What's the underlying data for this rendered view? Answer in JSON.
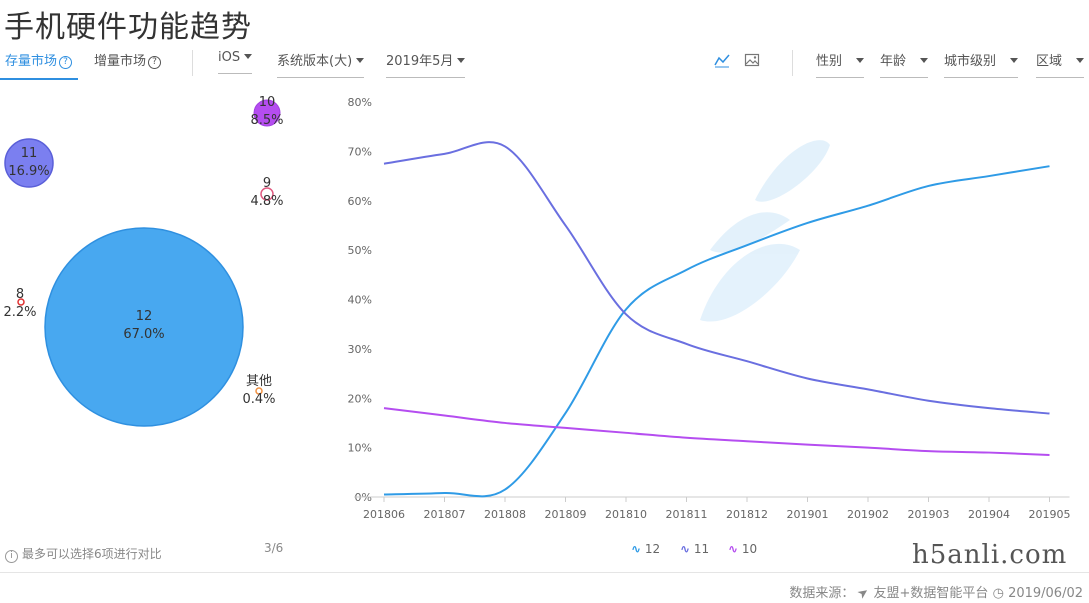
{
  "page": {
    "title": "手机硬件功能趋势"
  },
  "toolbar": {
    "tab_stock": "存量市场",
    "tab_incremental": "增量市场",
    "os": "iOS",
    "version": "系统版本(大)",
    "month": "2019年5月",
    "gender": "性别",
    "age": "年龄",
    "city_level": "城市级别",
    "region": "区域",
    "help_glyph": "?"
  },
  "icons": {
    "line_view": "line-chart-icon",
    "image_view": "image-icon",
    "info": "info-icon",
    "clock": "clock-icon",
    "logo": "plane-logo-icon"
  },
  "bubbles": [
    {
      "name": "10",
      "pct": "8.5%"
    },
    {
      "name": "11",
      "pct": "16.9%"
    },
    {
      "name": "9",
      "pct": "4.8%"
    },
    {
      "name": "8",
      "pct": "2.2%"
    },
    {
      "name": "12",
      "pct": "67.0%"
    },
    {
      "name": "其他",
      "pct": "0.4%"
    }
  ],
  "footer": {
    "note": "最多可以选择6项进行对比",
    "pager": "3/6",
    "source": "数据来源：",
    "platform": "友盟+数据智能平台",
    "date": "2019/06/02",
    "watermark": "h5anli.com"
  },
  "colors": {
    "s12": "#2f9be6",
    "s11": "#6a6fe0",
    "s10": "#b54df0",
    "accent": "#2f8fe0"
  },
  "chart_data": {
    "type": "line",
    "categories": [
      "201806",
      "201807",
      "201808",
      "201809",
      "201810",
      "201811",
      "201812",
      "201901",
      "201902",
      "201903",
      "201904",
      "201905"
    ],
    "ylim": [
      0,
      80
    ],
    "yticks": [
      "0%",
      "10%",
      "20%",
      "30%",
      "40%",
      "50%",
      "60%",
      "70%",
      "80%"
    ],
    "series": [
      {
        "name": "12",
        "values": [
          0.5,
          0.8,
          1.5,
          17,
          38,
          46,
          51,
          55.5,
          59,
          63,
          65,
          67
        ]
      },
      {
        "name": "11",
        "values": [
          67.5,
          69.5,
          71,
          55,
          37,
          31,
          27.5,
          24,
          21.8,
          19.5,
          18,
          16.9
        ]
      },
      {
        "name": "10",
        "values": [
          18,
          16.5,
          15,
          14,
          13,
          12,
          11.3,
          10.6,
          10,
          9.3,
          9,
          8.5
        ]
      }
    ],
    "legend": "bottom-center",
    "grid": false
  }
}
